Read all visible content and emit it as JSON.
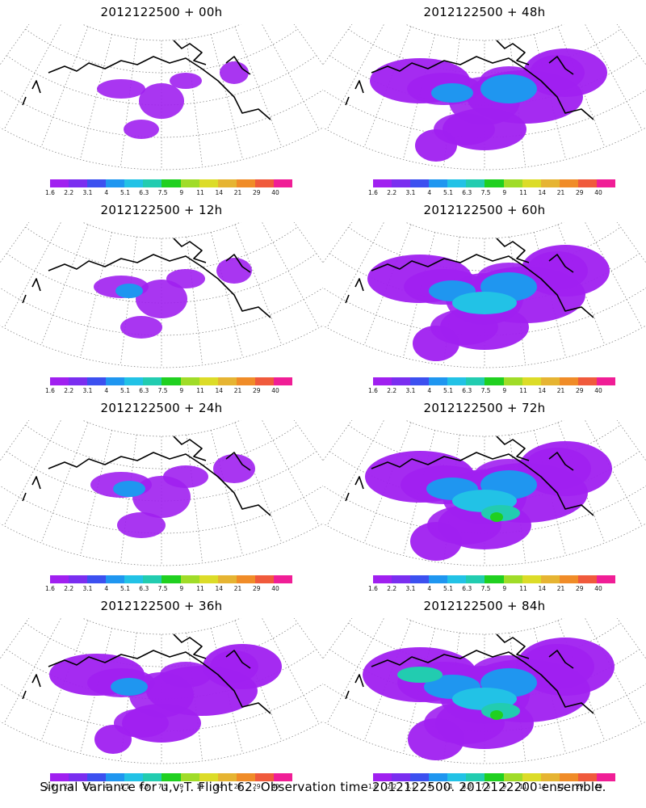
{
  "panels": [
    {
      "title": "2012122500 + 00h",
      "intensity": 0
    },
    {
      "title": "2012122500 + 48h",
      "intensity": 4
    },
    {
      "title": "2012122500 + 12h",
      "intensity": 1
    },
    {
      "title": "2012122500 + 60h",
      "intensity": 5
    },
    {
      "title": "2012122500 + 24h",
      "intensity": 2
    },
    {
      "title": "2012122500 + 72h",
      "intensity": 6
    },
    {
      "title": "2012122500 + 36h",
      "intensity": 3
    },
    {
      "title": "2012122500 + 84h",
      "intensity": 7
    }
  ],
  "colorbar": {
    "ticks": [
      "1.6",
      "2.2",
      "3.1",
      "4",
      "5.1",
      "6.3",
      "7.5",
      "9",
      "11",
      "14",
      "21",
      "29",
      "40"
    ],
    "colors": [
      "#a020f0",
      "#7a2ef0",
      "#3c50f0",
      "#1f96f0",
      "#22c2e6",
      "#22ccb0",
      "#20d020",
      "#a0dc28",
      "#dcdc28",
      "#e6b432",
      "#f08c28",
      "#f05a3c",
      "#f01e96"
    ]
  },
  "caption": "Signal Variance for u,v,T. Flight 62. Observation time 2012122500. 2012122200 ensemble."
}
